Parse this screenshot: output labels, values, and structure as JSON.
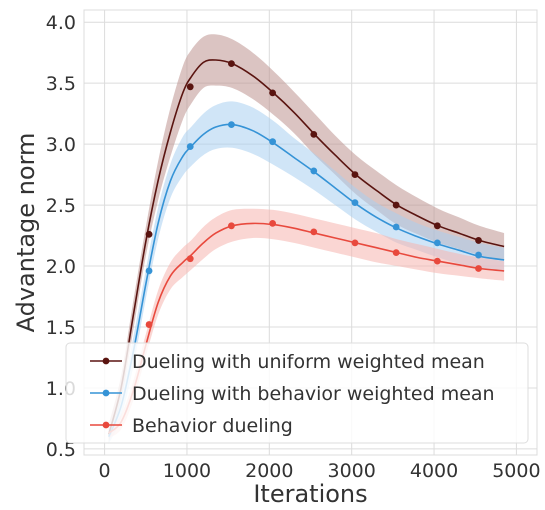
{
  "chart_data": {
    "type": "line",
    "xlabel": "Iterations",
    "ylabel": "Advantage norm",
    "xlim": [
      -250,
      5250
    ],
    "ylim": [
      0.45,
      4.1
    ],
    "xticks": [
      0,
      1000,
      2000,
      3000,
      4000,
      5000
    ],
    "yticks": [
      0.5,
      1.0,
      1.5,
      2.0,
      2.5,
      3.0,
      3.5,
      4.0
    ],
    "xtick_labels": [
      "0",
      "1000",
      "2000",
      "3000",
      "4000",
      "5000"
    ],
    "ytick_labels": [
      "0.5",
      "1.0",
      "1.5",
      "2.0",
      "2.5",
      "3.0",
      "3.5",
      "4.0"
    ],
    "grid": true,
    "legend_position": "bottom-left",
    "series": [
      {
        "name": "Dueling with uniform weighted mean",
        "color": "#5a1410",
        "band_color": "#bd9490",
        "curve": {
          "x": [
            50,
            200,
            350,
            500,
            650,
            800,
            950,
            1050,
            1200,
            1350,
            1550,
            1800,
            2050,
            2300,
            2550,
            2800,
            3050,
            3300,
            3550,
            3800,
            4050,
            4300,
            4550,
            4850
          ],
          "y": [
            0.62,
            1.0,
            1.6,
            2.2,
            2.7,
            3.1,
            3.42,
            3.55,
            3.67,
            3.69,
            3.66,
            3.56,
            3.42,
            3.26,
            3.08,
            2.91,
            2.75,
            2.62,
            2.5,
            2.41,
            2.33,
            2.27,
            2.21,
            2.16
          ]
        },
        "upper": [
          0.7,
          1.1,
          1.72,
          2.32,
          2.86,
          3.3,
          3.64,
          3.77,
          3.88,
          3.9,
          3.86,
          3.75,
          3.6,
          3.43,
          3.25,
          3.07,
          2.91,
          2.78,
          2.66,
          2.56,
          2.47,
          2.4,
          2.33,
          2.27
        ],
        "lower": [
          0.55,
          0.9,
          1.48,
          2.08,
          2.54,
          2.9,
          3.2,
          3.33,
          3.46,
          3.48,
          3.46,
          3.37,
          3.24,
          3.09,
          2.91,
          2.75,
          2.59,
          2.46,
          2.34,
          2.26,
          2.19,
          2.14,
          2.09,
          2.05
        ],
        "markers": {
          "x": [
            540,
            1040,
            1540,
            2040,
            2540,
            3040,
            3540,
            4040,
            4540
          ],
          "y": [
            2.26,
            3.47,
            3.66,
            3.42,
            3.08,
            2.75,
            2.5,
            2.33,
            2.21
          ]
        }
      },
      {
        "name": "Dueling with behavior weighted mean",
        "color": "#3593d6",
        "band_color": "#a9d0f0",
        "curve": {
          "x": [
            50,
            200,
            350,
            500,
            650,
            800,
            950,
            1050,
            1200,
            1350,
            1550,
            1800,
            2050,
            2300,
            2550,
            2800,
            3050,
            3300,
            3550,
            3800,
            4050,
            4300,
            4550,
            4850
          ],
          "y": [
            0.6,
            0.85,
            1.3,
            1.85,
            2.35,
            2.7,
            2.9,
            2.98,
            3.08,
            3.14,
            3.16,
            3.11,
            3.01,
            2.89,
            2.77,
            2.64,
            2.51,
            2.4,
            2.31,
            2.24,
            2.18,
            2.13,
            2.08,
            2.05
          ]
        },
        "upper": [
          0.66,
          0.94,
          1.42,
          1.97,
          2.48,
          2.84,
          3.06,
          3.14,
          3.25,
          3.32,
          3.35,
          3.3,
          3.19,
          3.05,
          2.92,
          2.78,
          2.64,
          2.52,
          2.43,
          2.35,
          2.29,
          2.24,
          2.19,
          2.15
        ],
        "lower": [
          0.54,
          0.76,
          1.18,
          1.73,
          2.22,
          2.56,
          2.74,
          2.82,
          2.91,
          2.96,
          2.97,
          2.92,
          2.83,
          2.73,
          2.62,
          2.5,
          2.38,
          2.28,
          2.19,
          2.13,
          2.07,
          2.02,
          1.98,
          1.95
        ],
        "markers": {
          "x": [
            540,
            1040,
            1540,
            2040,
            2540,
            3040,
            3540,
            4040,
            4540
          ],
          "y": [
            1.96,
            2.98,
            3.16,
            3.02,
            2.78,
            2.52,
            2.32,
            2.19,
            2.09
          ]
        }
      },
      {
        "name": "Behavior dueling",
        "color": "#e8493d",
        "band_color": "#f5b5ae",
        "curve": {
          "x": [
            50,
            200,
            350,
            500,
            650,
            800,
            950,
            1050,
            1200,
            1350,
            1550,
            1800,
            2050,
            2300,
            2550,
            2800,
            3050,
            3300,
            3550,
            3800,
            4050,
            4300,
            4550,
            4850
          ],
          "y": [
            0.63,
            0.72,
            0.98,
            1.35,
            1.7,
            1.92,
            2.03,
            2.09,
            2.19,
            2.27,
            2.33,
            2.35,
            2.34,
            2.31,
            2.27,
            2.23,
            2.19,
            2.15,
            2.11,
            2.07,
            2.04,
            2.01,
            1.98,
            1.96
          ]
        },
        "upper": [
          0.67,
          0.78,
          1.06,
          1.44,
          1.8,
          2.03,
          2.15,
          2.21,
          2.32,
          2.4,
          2.46,
          2.47,
          2.46,
          2.43,
          2.39,
          2.35,
          2.31,
          2.27,
          2.22,
          2.18,
          2.14,
          2.1,
          2.07,
          2.04
        ],
        "lower": [
          0.59,
          0.66,
          0.9,
          1.26,
          1.6,
          1.81,
          1.91,
          1.97,
          2.06,
          2.14,
          2.2,
          2.23,
          2.22,
          2.19,
          2.15,
          2.11,
          2.07,
          2.03,
          2.0,
          1.97,
          1.94,
          1.92,
          1.9,
          1.88
        ],
        "markers": {
          "x": [
            540,
            1040,
            1540,
            2040,
            2540,
            3040,
            3540,
            4040,
            4540
          ],
          "y": [
            1.52,
            2.06,
            2.33,
            2.35,
            2.28,
            2.19,
            2.11,
            2.04,
            1.98
          ]
        }
      }
    ]
  }
}
